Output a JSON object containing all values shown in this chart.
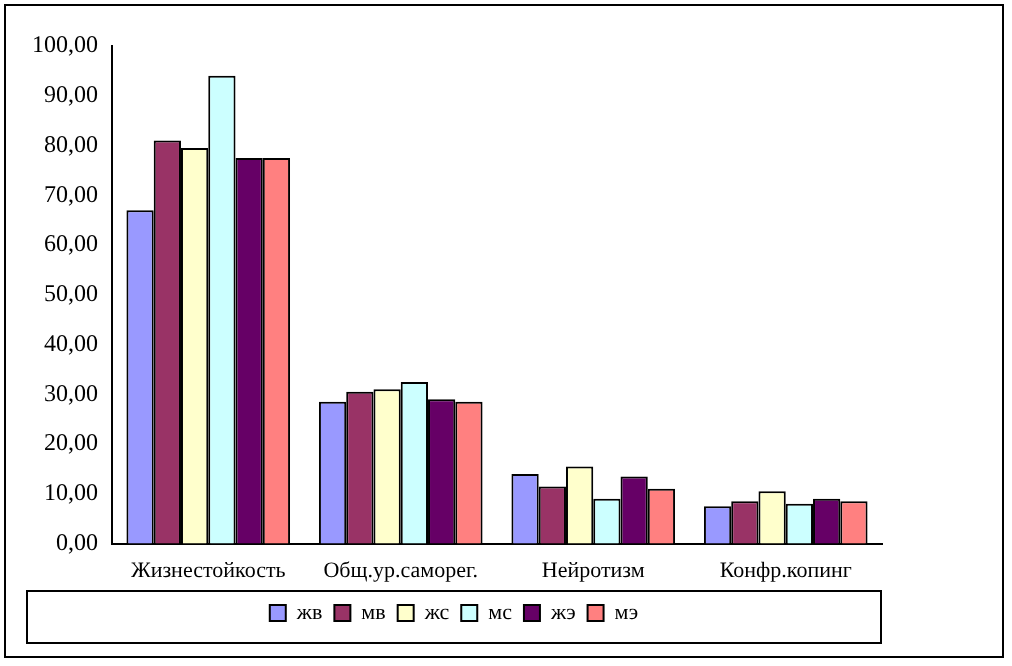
{
  "chart_data": {
    "type": "bar",
    "categories": [
      "Жизнестойкость",
      "Общ.ур.саморег.",
      "Нейротизм",
      "Конфр.копинг"
    ],
    "series": [
      {
        "name": "жв",
        "color": "#9999ff",
        "values": [
          67,
          28.5,
          14,
          7.5
        ]
      },
      {
        "name": "мв",
        "color": "#993366",
        "values": [
          81,
          30.5,
          11.5,
          8.5
        ]
      },
      {
        "name": "жс",
        "color": "#ffffcc",
        "values": [
          79.5,
          31,
          15.5,
          10.5
        ]
      },
      {
        "name": "мс",
        "color": "#ccffff",
        "values": [
          94,
          32.5,
          9,
          8
        ]
      },
      {
        "name": "жэ",
        "color": "#660066",
        "values": [
          77.5,
          29,
          13.5,
          9
        ]
      },
      {
        "name": "мэ",
        "color": "#ff8080",
        "values": [
          77.5,
          28.5,
          11,
          8.5
        ]
      }
    ],
    "ylim": [
      0,
      100
    ],
    "yticks": [
      {
        "value": 0,
        "label": "0,00"
      },
      {
        "value": 10,
        "label": "10,00"
      },
      {
        "value": 20,
        "label": "20,00"
      },
      {
        "value": 30,
        "label": "30,00"
      },
      {
        "value": 40,
        "label": "40,00"
      },
      {
        "value": 50,
        "label": "50,00"
      },
      {
        "value": 60,
        "label": "60,00"
      },
      {
        "value": 70,
        "label": "70,00"
      },
      {
        "value": 80,
        "label": "80,00"
      },
      {
        "value": 90,
        "label": "90,00"
      },
      {
        "value": 100,
        "label": "100,00"
      }
    ],
    "grid": false,
    "legend": "bottom"
  }
}
